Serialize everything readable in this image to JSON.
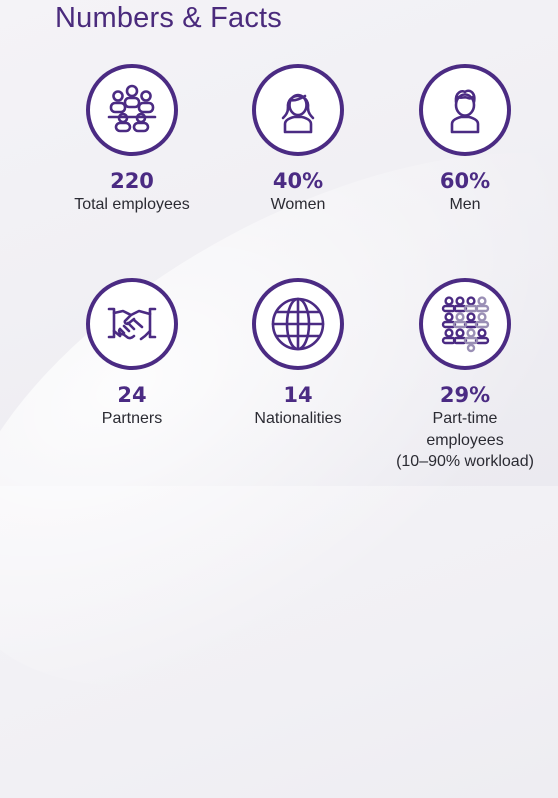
{
  "title": "Numbers & Facts",
  "stats": [
    {
      "value": "220",
      "label": "Total employees",
      "icon": "team-icon"
    },
    {
      "value": "40%",
      "label": "Women",
      "icon": "woman-icon"
    },
    {
      "value": "60%",
      "label": "Men",
      "icon": "man-icon"
    },
    {
      "value": "24",
      "label": "Partners",
      "icon": "handshake-icon"
    },
    {
      "value": "14",
      "label": "Nationalities",
      "icon": "globe-icon"
    },
    {
      "value": "29%",
      "label_lines": [
        "Part-time",
        "employees",
        "(10–90% workload)"
      ],
      "icon": "crowd-icon"
    }
  ],
  "colors": {
    "accent": "#4b2b83",
    "accent_light": "#9a8fb5",
    "text": "#2b2b33"
  }
}
